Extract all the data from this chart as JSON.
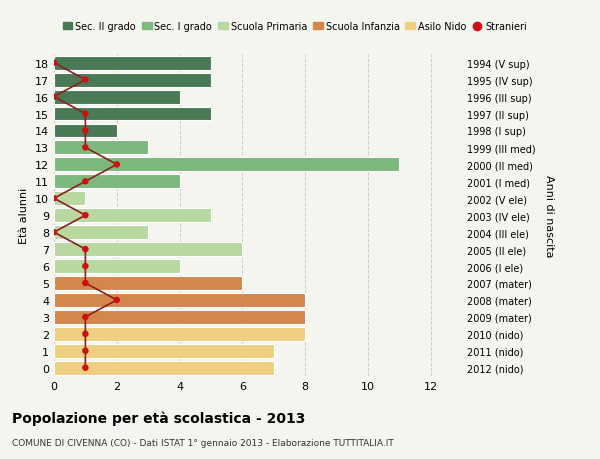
{
  "ages": [
    18,
    17,
    16,
    15,
    14,
    13,
    12,
    11,
    10,
    9,
    8,
    7,
    6,
    5,
    4,
    3,
    2,
    1,
    0
  ],
  "right_labels": [
    "1994 (V sup)",
    "1995 (IV sup)",
    "1996 (III sup)",
    "1997 (II sup)",
    "1998 (I sup)",
    "1999 (III med)",
    "2000 (II med)",
    "2001 (I med)",
    "2002 (V ele)",
    "2003 (IV ele)",
    "2004 (III ele)",
    "2005 (II ele)",
    "2006 (I ele)",
    "2007 (mater)",
    "2008 (mater)",
    "2009 (mater)",
    "2010 (nido)",
    "2011 (nido)",
    "2012 (nido)"
  ],
  "bar_values": [
    5,
    5,
    4,
    5,
    2,
    3,
    11,
    4,
    1,
    5,
    3,
    6,
    4,
    6,
    8,
    8,
    8,
    7,
    7
  ],
  "stranieri_values": [
    0,
    1,
    0,
    1,
    1,
    1,
    2,
    1,
    0,
    1,
    0,
    1,
    1,
    1,
    2,
    1,
    1,
    1,
    1
  ],
  "bar_colors": [
    "#4a7a55",
    "#4a7a55",
    "#4a7a55",
    "#4a7a55",
    "#4a7a55",
    "#7db87d",
    "#7db87d",
    "#7db87d",
    "#b8d8a0",
    "#b8d8a0",
    "#b8d8a0",
    "#b8d8a0",
    "#b8d8a0",
    "#d4874a",
    "#d4874a",
    "#d4874a",
    "#f0d080",
    "#f0d080",
    "#f0d080"
  ],
  "stranieri_color": "#cc1111",
  "line_color": "#8b2020",
  "ylabel_label": "Età alunni",
  "right_ylabel": "Anni di nascita",
  "title": "Popolazione per età scolastica - 2013",
  "subtitle": "COMUNE DI CIVENNA (CO) - Dati ISTAT 1° gennaio 2013 - Elaborazione TUTTITALIA.IT",
  "xlim": [
    0,
    13
  ],
  "xticks": [
    0,
    2,
    4,
    6,
    8,
    10,
    12
  ],
  "bg_color": "#f5f5f0",
  "grid_color": "#cccccc",
  "legend_labels": [
    "Sec. II grado",
    "Sec. I grado",
    "Scuola Primaria",
    "Scuola Infanzia",
    "Asilo Nido",
    "Stranieri"
  ],
  "legend_colors": [
    "#4a7a55",
    "#7db87d",
    "#b8d8a0",
    "#d4874a",
    "#f0d080",
    "#cc1111"
  ]
}
